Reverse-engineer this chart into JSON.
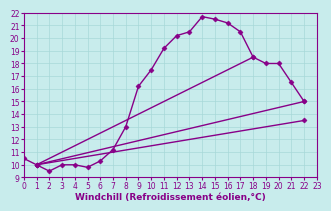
{
  "xlabel": "Windchill (Refroidissement éolien,°C)",
  "xlim": [
    0,
    23
  ],
  "ylim": [
    9,
    22
  ],
  "xticks": [
    0,
    1,
    2,
    3,
    4,
    5,
    6,
    7,
    8,
    9,
    10,
    11,
    12,
    13,
    14,
    15,
    16,
    17,
    18,
    19,
    20,
    21,
    22,
    23
  ],
  "yticks": [
    9,
    10,
    11,
    12,
    13,
    14,
    15,
    16,
    17,
    18,
    19,
    20,
    21,
    22
  ],
  "bg_color": "#c8ecec",
  "grid_color": "#a8d8d8",
  "line_color": "#880088",
  "curves": [
    {
      "comment": "main curve with many points",
      "x": [
        0,
        1,
        2,
        3,
        4,
        5,
        6,
        7,
        8,
        9,
        10,
        11,
        12,
        13,
        14,
        15,
        16,
        17,
        18,
        19,
        20,
        21,
        22
      ],
      "y": [
        10.5,
        10.0,
        9.5,
        10.0,
        10.0,
        9.8,
        10.3,
        11.2,
        13.0,
        16.2,
        17.5,
        19.2,
        20.2,
        20.5,
        21.7,
        21.5,
        21.2,
        20.5,
        18.5,
        18.0,
        18.0,
        16.5,
        15.0
      ]
    },
    {
      "comment": "line 1 - top straight line ending high",
      "x": [
        1,
        18
      ],
      "y": [
        10.0,
        18.5
      ]
    },
    {
      "comment": "line 2 - middle straight line",
      "x": [
        1,
        22
      ],
      "y": [
        10.0,
        15.0
      ]
    },
    {
      "comment": "line 3 - bottom straight line",
      "x": [
        1,
        22
      ],
      "y": [
        10.0,
        13.5
      ]
    }
  ],
  "marker": "D",
  "marker_size": 2.5,
  "linewidth": 1.0,
  "tick_fontsize": 5.5,
  "label_fontsize": 6.5
}
